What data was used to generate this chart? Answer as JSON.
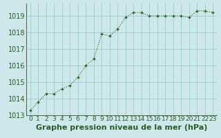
{
  "x": [
    0,
    1,
    2,
    3,
    4,
    5,
    6,
    7,
    8,
    9,
    10,
    11,
    12,
    13,
    14,
    15,
    16,
    17,
    18,
    19,
    20,
    21,
    22,
    23
  ],
  "y": [
    1013.3,
    1013.8,
    1014.3,
    1014.3,
    1014.6,
    1014.8,
    1015.3,
    1016.0,
    1016.4,
    1017.9,
    1017.8,
    1018.2,
    1018.9,
    1019.2,
    1019.2,
    1019.0,
    1019.0,
    1019.0,
    1019.0,
    1019.0,
    1018.9,
    1019.3,
    1019.3,
    1019.2
  ],
  "xlabel": "Graphe pression niveau de la mer (hPa)",
  "ylim": [
    1013.0,
    1019.75
  ],
  "xlim": [
    -0.5,
    23.5
  ],
  "yticks": [
    1013,
    1014,
    1015,
    1016,
    1017,
    1018,
    1019
  ],
  "xticks": [
    0,
    1,
    2,
    3,
    4,
    5,
    6,
    7,
    8,
    9,
    10,
    11,
    12,
    13,
    14,
    15,
    16,
    17,
    18,
    19,
    20,
    21,
    22,
    23
  ],
  "line_color": "#2d5a2d",
  "marker": "+",
  "bg_color": "#cce8e8",
  "grid_color": "#99cccc",
  "border_color": "#666666",
  "xlabel_fontsize": 8,
  "ytick_fontsize": 7,
  "xtick_fontsize": 6.5,
  "label_color": "#2d5a2d"
}
